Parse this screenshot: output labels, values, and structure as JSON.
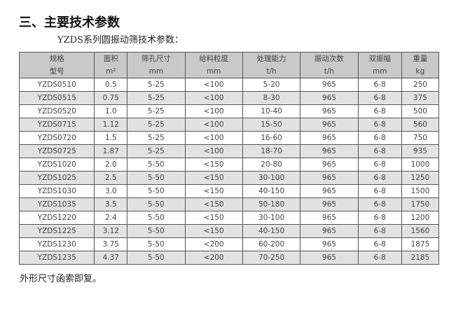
{
  "title": "三、主要技术参数",
  "subtitle": "YZDS系列圆振动筛技术参数：",
  "table": {
    "headers": [
      {
        "name": "规格",
        "unit": "型号"
      },
      {
        "name": "面积",
        "unit": "m²"
      },
      {
        "name": "筛孔尺寸",
        "unit": "mm"
      },
      {
        "name": "给料粒度",
        "unit": "mm"
      },
      {
        "name": "处理能力",
        "unit": "t/h"
      },
      {
        "name": "振动次数",
        "unit": "t/h"
      },
      {
        "name": "双振幅",
        "unit": "mm"
      },
      {
        "name": "重量",
        "unit": "kg"
      }
    ],
    "rows": [
      [
        "YZDS0510",
        "0.5",
        "5-25",
        "<100",
        "5-20",
        "965",
        "6-8",
        "250"
      ],
      [
        "YZDS0515",
        "0.75",
        "5-25",
        "<100",
        "8-30",
        "965",
        "6-8",
        "375"
      ],
      [
        "YZDS0520",
        "1.0",
        "5-25",
        "<100",
        "10-40",
        "965",
        "6-8",
        "500"
      ],
      [
        "YZDS0715",
        "1.12",
        "5-25",
        "<100",
        "15-50",
        "965",
        "6-8",
        "560"
      ],
      [
        "YZDS0720",
        "1.5",
        "5-25",
        "<100",
        "16-60",
        "965",
        "6-8",
        "750"
      ],
      [
        "YZDS0725",
        "1.87",
        "5-25",
        "<100",
        "18-70",
        "965",
        "6-8",
        "935"
      ],
      [
        "YZDS1020",
        "2.0",
        "5-50",
        "<150",
        "20-80",
        "965",
        "6-8",
        "1000"
      ],
      [
        "YZDS1025",
        "2.5",
        "5-50",
        "<150",
        "30-100",
        "965",
        "6-8",
        "1250"
      ],
      [
        "YZDS1030",
        "3.0",
        "5-50",
        "<150",
        "40-150",
        "965",
        "6-8",
        "1500"
      ],
      [
        "YZDS1035",
        "3.5",
        "5-50",
        "<150",
        "50-180",
        "965",
        "6-8",
        "1750"
      ],
      [
        "YZDS1220",
        "2.4",
        "5-50",
        "<150",
        "30-100",
        "965",
        "6-8",
        "1200"
      ],
      [
        "YZDS1225",
        "3.12",
        "5-50",
        "<150",
        "40-150",
        "965",
        "6-8",
        "1560"
      ],
      [
        "YZDS1230",
        "3.75",
        "5-50",
        "<200",
        "60-200",
        "965",
        "6-8",
        "1875"
      ],
      [
        "YZDS1235",
        "4.37",
        "5-50",
        "<200",
        "70-250",
        "965",
        "6-8",
        "2185"
      ]
    ]
  },
  "footer": "外形尺寸函索即复。"
}
